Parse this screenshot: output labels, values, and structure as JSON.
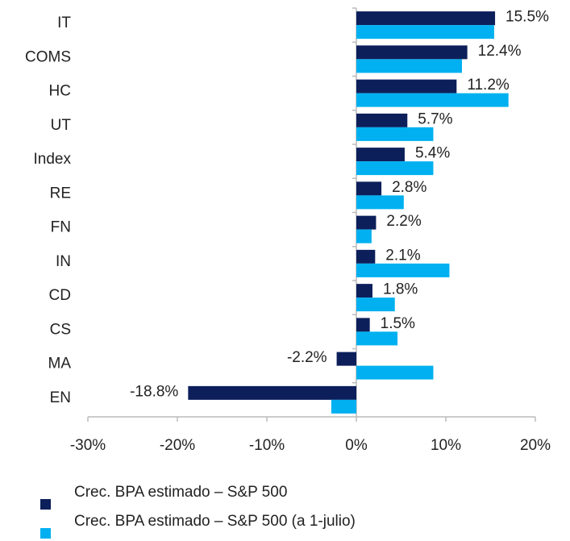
{
  "chart_data": {
    "type": "bar",
    "orientation": "horizontal",
    "categories": [
      "IT",
      "COMS",
      "HC",
      "UT",
      "Index",
      "RE",
      "FN",
      "IN",
      "CD",
      "CS",
      "MA",
      "EN"
    ],
    "series": [
      {
        "name": "Crec. BPA estimado – S&P 500",
        "color": "#0c1f5b",
        "values": [
          15.5,
          12.4,
          11.2,
          5.7,
          5.4,
          2.8,
          2.2,
          2.1,
          1.8,
          1.5,
          -2.2,
          -18.8
        ],
        "value_labels": [
          "15.5%",
          "12.4%",
          "11.2%",
          "5.7%",
          "5.4%",
          "2.8%",
          "2.2%",
          "2.1%",
          "1.8%",
          "1.5%",
          "-2.2%",
          "-18.8%"
        ]
      },
      {
        "name": "Crec. BPA estimado – S&P 500 (a 1-julio)",
        "color": "#00b0f0",
        "values": [
          15.4,
          11.8,
          17.0,
          8.6,
          8.6,
          5.3,
          1.7,
          10.4,
          4.3,
          4.6,
          8.6,
          -2.8
        ]
      }
    ],
    "xlim": [
      -30,
      20
    ],
    "xticks": [
      {
        "value": -30,
        "label": "-30%"
      },
      {
        "value": -20,
        "label": "-20%"
      },
      {
        "value": -10,
        "label": "-10%"
      },
      {
        "value": 0,
        "label": "0%"
      },
      {
        "value": 10,
        "label": "10%"
      },
      {
        "value": 20,
        "label": "20%"
      }
    ],
    "legend": "bottom-left"
  }
}
